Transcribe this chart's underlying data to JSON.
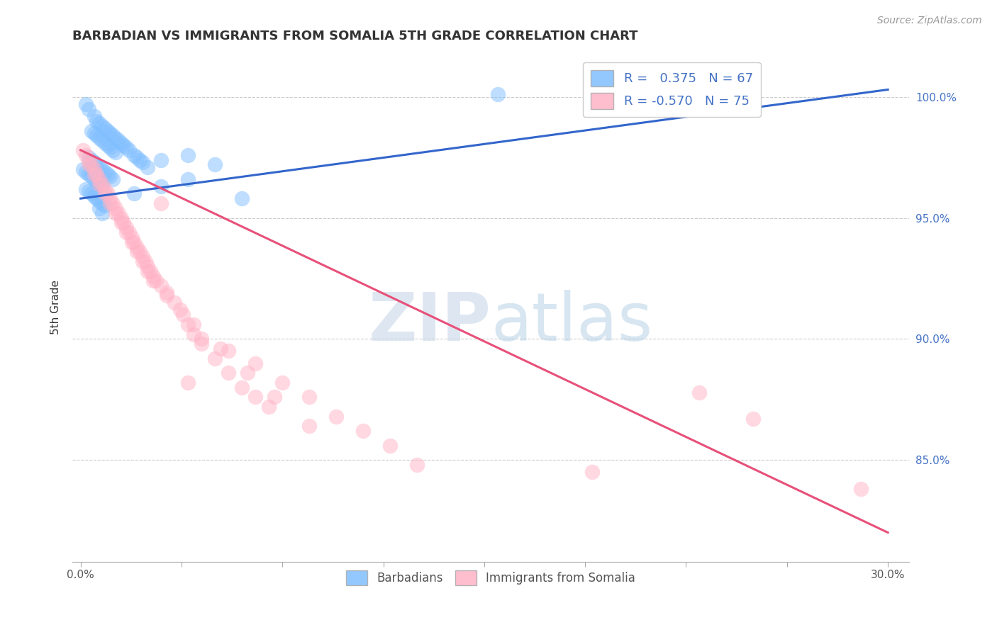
{
  "title": "BARBADIAN VS IMMIGRANTS FROM SOMALIA 5TH GRADE CORRELATION CHART",
  "source": "Source: ZipAtlas.com",
  "ylabel": "5th Grade",
  "blue_color": "#80bfff",
  "pink_color": "#ffb3c6",
  "blue_line_color": "#3366cc",
  "pink_line_color": "#e8507a",
  "watermark_zip": "ZIP",
  "watermark_atlas": "atlas",
  "ylim_low": 0.808,
  "ylim_high": 1.018,
  "xlim_low": -0.003,
  "xlim_high": 0.308,
  "yticks": [
    1.0,
    0.95,
    0.9,
    0.85
  ],
  "ytick_labels": [
    "100.0%",
    "95.0%",
    "90.0%",
    "85.0%"
  ],
  "xtick_left_label": "0.0%",
  "xtick_right_label": "30.0%",
  "legend1_label": "R =   0.375   N = 67",
  "legend2_label": "R = -0.570   N = 75",
  "bot_legend1": "Barbadians",
  "bot_legend2": "Immigrants from Somalia",
  "blue_line_x": [
    0.0,
    0.3
  ],
  "blue_line_y": [
    0.958,
    1.003
  ],
  "pink_line_x": [
    0.0,
    0.3
  ],
  "pink_line_y": [
    0.978,
    0.82
  ],
  "blue_x": [
    0.002,
    0.003,
    0.005,
    0.006,
    0.007,
    0.008,
    0.009,
    0.01,
    0.011,
    0.012,
    0.013,
    0.014,
    0.015,
    0.016,
    0.017,
    0.018,
    0.02,
    0.021,
    0.022,
    0.023,
    0.004,
    0.005,
    0.006,
    0.007,
    0.008,
    0.009,
    0.01,
    0.011,
    0.012,
    0.013,
    0.003,
    0.004,
    0.005,
    0.006,
    0.007,
    0.008,
    0.009,
    0.01,
    0.011,
    0.012,
    0.001,
    0.002,
    0.003,
    0.004,
    0.005,
    0.006,
    0.007,
    0.008,
    0.002,
    0.003,
    0.004,
    0.005,
    0.006,
    0.007,
    0.008,
    0.009,
    0.025,
    0.03,
    0.04,
    0.05,
    0.02,
    0.03,
    0.04,
    0.06,
    0.007,
    0.008,
    0.155
  ],
  "blue_y": [
    0.997,
    0.995,
    0.992,
    0.99,
    0.989,
    0.988,
    0.987,
    0.986,
    0.985,
    0.984,
    0.983,
    0.982,
    0.981,
    0.98,
    0.979,
    0.978,
    0.976,
    0.975,
    0.974,
    0.973,
    0.986,
    0.985,
    0.984,
    0.983,
    0.982,
    0.981,
    0.98,
    0.979,
    0.978,
    0.977,
    0.975,
    0.974,
    0.973,
    0.972,
    0.971,
    0.97,
    0.969,
    0.968,
    0.967,
    0.966,
    0.97,
    0.969,
    0.968,
    0.967,
    0.966,
    0.965,
    0.964,
    0.963,
    0.962,
    0.961,
    0.96,
    0.959,
    0.958,
    0.957,
    0.956,
    0.955,
    0.971,
    0.974,
    0.976,
    0.972,
    0.96,
    0.963,
    0.966,
    0.958,
    0.954,
    0.952,
    1.001
  ],
  "pink_x": [
    0.001,
    0.002,
    0.003,
    0.004,
    0.005,
    0.006,
    0.007,
    0.008,
    0.009,
    0.01,
    0.011,
    0.012,
    0.013,
    0.014,
    0.015,
    0.016,
    0.017,
    0.018,
    0.019,
    0.02,
    0.021,
    0.022,
    0.023,
    0.024,
    0.025,
    0.026,
    0.027,
    0.028,
    0.03,
    0.032,
    0.035,
    0.038,
    0.04,
    0.042,
    0.045,
    0.05,
    0.055,
    0.06,
    0.065,
    0.07,
    0.003,
    0.005,
    0.007,
    0.009,
    0.011,
    0.013,
    0.015,
    0.017,
    0.019,
    0.021,
    0.023,
    0.025,
    0.027,
    0.032,
    0.037,
    0.042,
    0.052,
    0.062,
    0.072,
    0.085,
    0.045,
    0.055,
    0.065,
    0.075,
    0.085,
    0.095,
    0.105,
    0.115,
    0.125,
    0.19,
    0.23,
    0.25,
    0.29,
    0.03,
    0.04
  ],
  "pink_y": [
    0.978,
    0.976,
    0.974,
    0.972,
    0.97,
    0.968,
    0.966,
    0.964,
    0.962,
    0.96,
    0.958,
    0.956,
    0.954,
    0.952,
    0.95,
    0.948,
    0.946,
    0.944,
    0.942,
    0.94,
    0.938,
    0.936,
    0.934,
    0.932,
    0.93,
    0.928,
    0.926,
    0.924,
    0.922,
    0.919,
    0.915,
    0.91,
    0.906,
    0.902,
    0.898,
    0.892,
    0.886,
    0.88,
    0.876,
    0.872,
    0.972,
    0.968,
    0.964,
    0.96,
    0.956,
    0.952,
    0.948,
    0.944,
    0.94,
    0.936,
    0.932,
    0.928,
    0.924,
    0.918,
    0.912,
    0.906,
    0.896,
    0.886,
    0.876,
    0.864,
    0.9,
    0.895,
    0.89,
    0.882,
    0.876,
    0.868,
    0.862,
    0.856,
    0.848,
    0.845,
    0.878,
    0.867,
    0.838,
    0.956,
    0.882
  ]
}
